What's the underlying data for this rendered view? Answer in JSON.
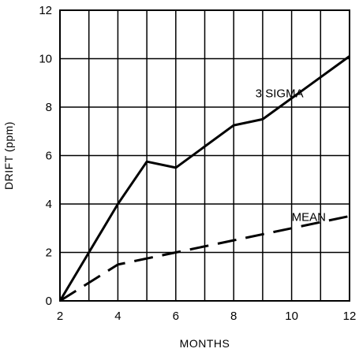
{
  "chart_data": {
    "type": "line",
    "xlabel": "MONTHS",
    "ylabel": "DRIFT (ppm)",
    "xlim": [
      2,
      12
    ],
    "ylim": [
      0,
      12
    ],
    "x_ticks": [
      2,
      4,
      6,
      8,
      10,
      12
    ],
    "y_ticks": [
      0,
      2,
      4,
      6,
      8,
      10,
      12
    ],
    "grid": true,
    "series": [
      {
        "name": "3 SIGMA",
        "style": "solid",
        "color": "#000000",
        "points": [
          [
            2,
            0
          ],
          [
            4,
            4
          ],
          [
            5,
            5.75
          ],
          [
            6,
            5.5
          ],
          [
            8,
            7.25
          ],
          [
            9,
            7.5
          ],
          [
            12,
            10.1
          ]
        ]
      },
      {
        "name": "MEAN",
        "style": "dashed",
        "color": "#000000",
        "points": [
          [
            2,
            0
          ],
          [
            4,
            1.5
          ],
          [
            6,
            2
          ],
          [
            8,
            2.5
          ],
          [
            10,
            3
          ],
          [
            12,
            3.5
          ]
        ]
      }
    ]
  }
}
